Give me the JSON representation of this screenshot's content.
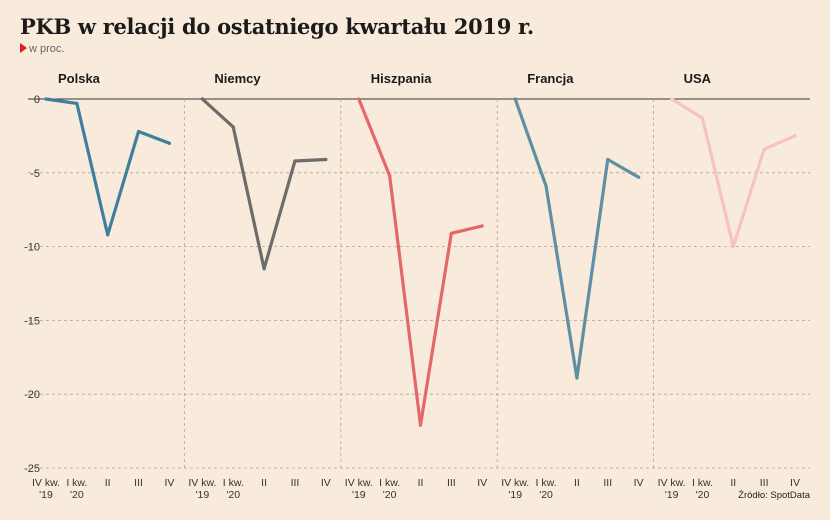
{
  "header": {
    "title": "PKB w relacji do ostatniego kwartału 2019 r.",
    "subtitle": "w proc."
  },
  "footer": {
    "source": "Źródło: SpotData"
  },
  "colors": {
    "background": "#f9ebdb",
    "marker": "#d62020"
  },
  "chart_data": {
    "type": "line",
    "ylim": [
      -25,
      0
    ],
    "yticks": [
      0,
      -5,
      -10,
      -15,
      -20,
      -25
    ],
    "grid": true,
    "categories": [
      [
        "IV kw.",
        "'19"
      ],
      [
        "I kw.",
        "'20"
      ],
      [
        "II"
      ],
      [
        "III"
      ],
      [
        "IV"
      ]
    ],
    "panels": [
      {
        "name": "Polska",
        "color": "#3e7f9e",
        "values": [
          0,
          -0.3,
          -9.2,
          -2.2,
          -3.0
        ]
      },
      {
        "name": "Niemcy",
        "color": "#6c6c6c",
        "values": [
          0,
          -1.9,
          -11.5,
          -4.2,
          -4.1
        ]
      },
      {
        "name": "Hiszpania",
        "color": "#e4686a",
        "values": [
          0,
          -5.2,
          -22.1,
          -9.1,
          -8.6
        ]
      },
      {
        "name": "Francja",
        "color": "#5f8fa3",
        "values": [
          0,
          -5.9,
          -18.9,
          -4.1,
          -5.3
        ]
      },
      {
        "name": "USA",
        "color": "#f7c2c2",
        "values": [
          0,
          -1.3,
          -10.0,
          -3.4,
          -2.5
        ]
      }
    ]
  }
}
